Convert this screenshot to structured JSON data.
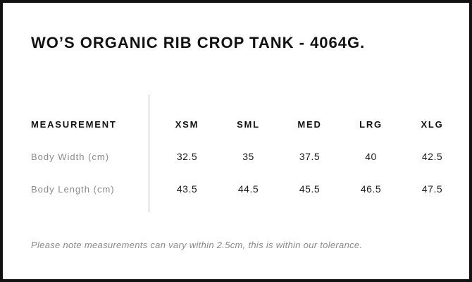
{
  "title": "WO’S ORGANIC RIB CROP TANK - 4064G.",
  "table": {
    "measurement_header": "MEASUREMENT",
    "size_headers": [
      "XSM",
      "SML",
      "MED",
      "LRG",
      "XLG"
    ],
    "rows": [
      {
        "label": "Body Width (cm)",
        "values": [
          "32.5",
          "35",
          "37.5",
          "40",
          "42.5"
        ]
      },
      {
        "label": "Body Length (cm)",
        "values": [
          "43.5",
          "44.5",
          "45.5",
          "46.5",
          "47.5"
        ]
      }
    ]
  },
  "note": "Please note measurements can vary within 2.5cm, this is within our tolerance.",
  "chart_data": {
    "type": "table",
    "title": "WO’S ORGANIC RIB CROP TANK - 4064G.",
    "columns": [
      "MEASUREMENT",
      "XSM",
      "SML",
      "MED",
      "LRG",
      "XLG"
    ],
    "rows": [
      {
        "label": "Body Width (cm)",
        "values": [
          32.5,
          35,
          37.5,
          40,
          42.5
        ]
      },
      {
        "label": "Body Length (cm)",
        "values": [
          43.5,
          44.5,
          45.5,
          46.5,
          47.5
        ]
      }
    ],
    "note": "Please note measurements can vary within 2.5cm, this is within our tolerance."
  },
  "colors": {
    "border": "#121212",
    "text_primary": "#121212",
    "text_secondary": "#8a8a8a",
    "divider": "#b5b5b5",
    "background": "#ffffff"
  }
}
